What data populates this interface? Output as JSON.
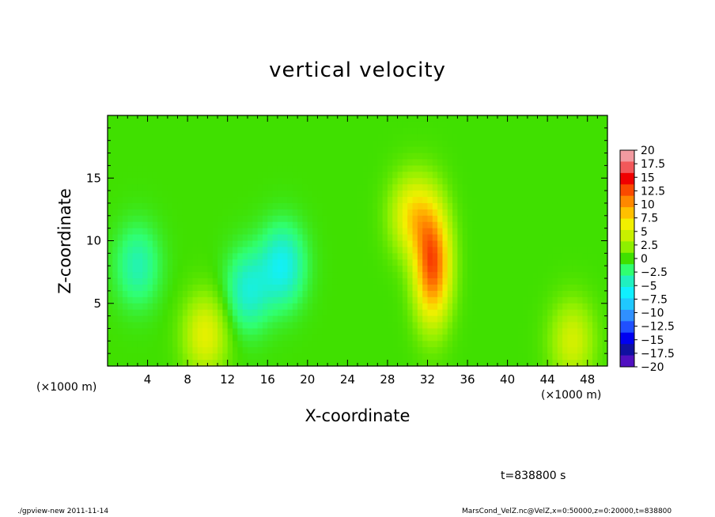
{
  "chart_data": {
    "type": "heatmap",
    "title": "vertical velocity",
    "xlabel": "X-coordinate",
    "ylabel": "Z-coordinate",
    "x_unit_label": "(×1000 m)",
    "x_range": [
      0,
      50
    ],
    "y_range": [
      0,
      20
    ],
    "x_ticks": [
      4,
      8,
      12,
      16,
      20,
      24,
      28,
      32,
      36,
      40,
      44,
      48
    ],
    "y_ticks": [
      5,
      10,
      15
    ],
    "color_levels": [
      "20",
      "17.5",
      "15",
      "12.5",
      "10",
      "7.5",
      "5",
      "2.5",
      "0",
      "−2.5",
      "−5",
      "−7.5",
      "−10",
      "−12.5",
      "−15",
      "−17.5",
      "−20"
    ],
    "color_range": [
      -20,
      20
    ],
    "colors": [
      "#f29aa0",
      "#f2585a",
      "#f00000",
      "#fa4a00",
      "#ff8800",
      "#ffc000",
      "#f2f000",
      "#c8f000",
      "#8ef000",
      "#40e000",
      "#30ff70",
      "#20f0c0",
      "#10f0ff",
      "#20c8ff",
      "#3090ff",
      "#2050ff",
      "#0000f0",
      "#1010a0",
      "#5010c0"
    ],
    "features": [
      {
        "x": 32.5,
        "z": 8,
        "peak": 13
      },
      {
        "x": 30.5,
        "z": 12,
        "peak": 7
      },
      {
        "x": 9.8,
        "z": 2.5,
        "peak": 6
      },
      {
        "x": 46.5,
        "z": 2,
        "peak": 5
      },
      {
        "x": 17.5,
        "z": 8,
        "peak": -6
      },
      {
        "x": 14,
        "z": 6,
        "peak": -5
      },
      {
        "x": 3,
        "z": 8,
        "peak": -4
      }
    ],
    "grid": false
  },
  "annotations": {
    "time": "t=838800 s",
    "footer_left": "./gpview-new   2011-11-14",
    "footer_right": "MarsCond_VelZ.nc@VelZ,x=0:50000,z=0:20000,t=838800"
  }
}
